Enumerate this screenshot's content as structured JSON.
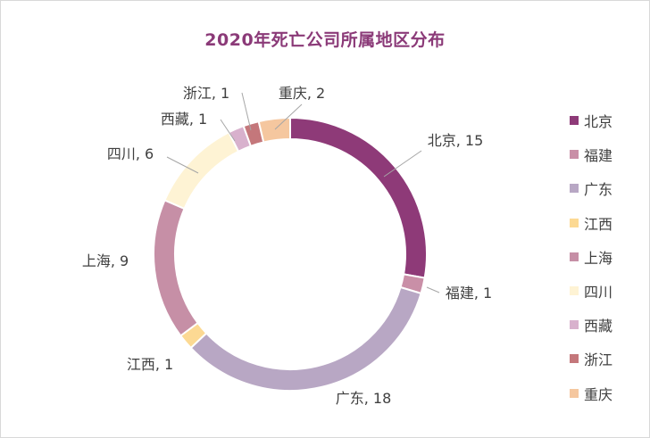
{
  "chart_data": {
    "type": "donut",
    "title": "2020年死亡公司所属地区分布",
    "series": [
      {
        "name": "北京",
        "value": 15,
        "label": "北京, 15",
        "color": "#8e3a78"
      },
      {
        "name": "福建",
        "value": 1,
        "label": "福建, 1",
        "color": "#c98fa7"
      },
      {
        "name": "广东",
        "value": 18,
        "label": "广东, 18",
        "color": "#b8a7c4"
      },
      {
        "name": "江西",
        "value": 1,
        "label": "江西, 1",
        "color": "#fcd993"
      },
      {
        "name": "上海",
        "value": 9,
        "label": "上海, 9",
        "color": "#c68fa6"
      },
      {
        "name": "四川",
        "value": 6,
        "label": "四川, 6",
        "color": "#fef3d4"
      },
      {
        "name": "西藏",
        "value": 1,
        "label": "西藏, 1",
        "color": "#d8b1cd"
      },
      {
        "name": "浙江",
        "value": 1,
        "label": "浙江, 1",
        "color": "#c4777b"
      },
      {
        "name": "重庆",
        "value": 2,
        "label": "重庆, 2",
        "color": "#f5c79f"
      }
    ],
    "legend_position": "right"
  }
}
